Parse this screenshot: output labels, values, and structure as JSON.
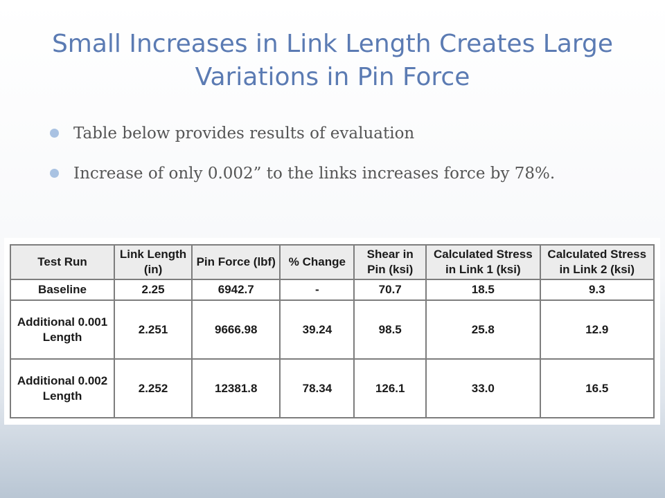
{
  "slide": {
    "title": "Small Increases in Link Length Creates Large Variations in Pin Force",
    "bullets": [
      "Table below provides results of evaluation",
      "Increase of only 0.002” to the links increases force by 78%."
    ]
  },
  "table": {
    "headers": [
      "Test Run",
      "Link Length (in)",
      "Pin Force (lbf)",
      "% Change",
      "Shear in Pin (ksi)",
      "Calculated Stress in Link 1 (ksi)",
      "Calculated Stress in Link 2 (ksi)"
    ],
    "rows": [
      [
        "Baseline",
        "2.25",
        "6942.7",
        "-",
        "70.7",
        "18.5",
        "9.3"
      ],
      [
        "Additional 0.001 Length",
        "2.251",
        "9666.98",
        "39.24",
        "98.5",
        "25.8",
        "12.9"
      ],
      [
        "Additional 0.002 Length",
        "2.252",
        "12381.8",
        "78.34",
        "126.1",
        "33.0",
        "16.5"
      ]
    ]
  },
  "colors": {
    "title": "#5b7bb3",
    "bullet_dot": "#a9c2e2",
    "body_text": "#555555",
    "table_header_bg": "#ececec",
    "table_border": "#7d7d7d"
  }
}
